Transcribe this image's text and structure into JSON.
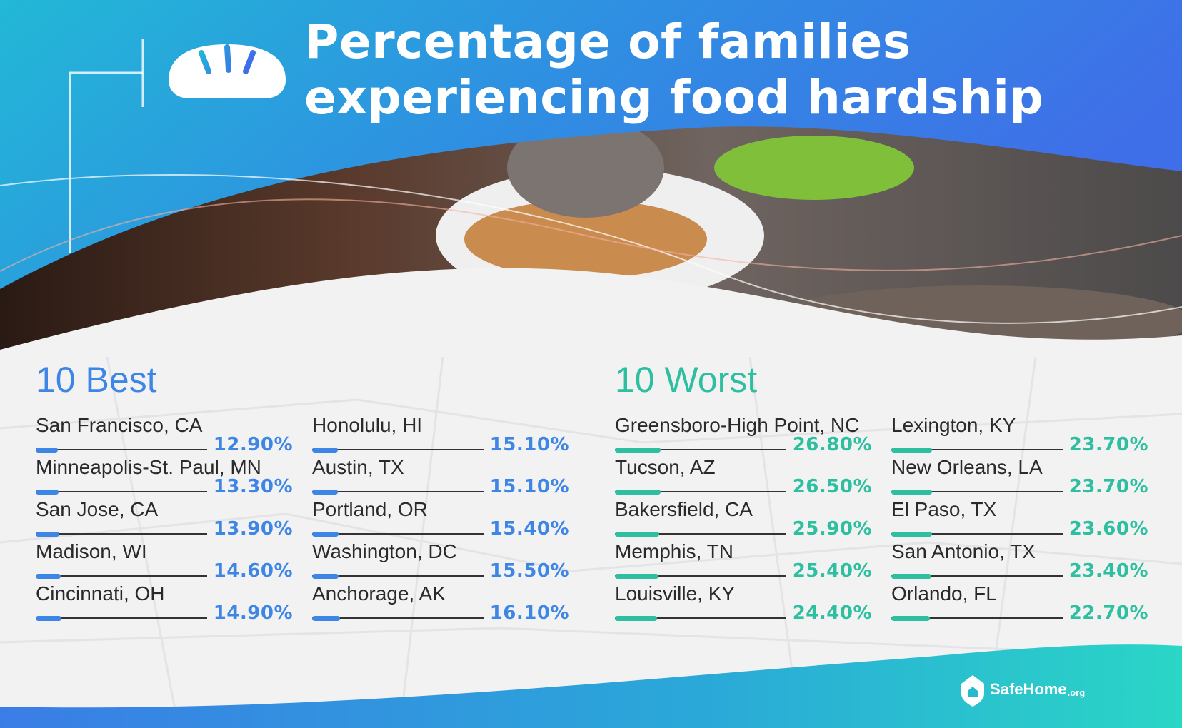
{
  "header": {
    "title_line1": "Percentage of families",
    "title_line2": "experiencing food hardship",
    "icon": "bread-icon"
  },
  "colors": {
    "best_accent": "#3e86e6",
    "worst_accent": "#2dbfa0",
    "header_blue": "#3a7de6",
    "footer_teal": "#2ad1c5"
  },
  "chart_data": [
    {
      "type": "bar",
      "title": "10 Best",
      "categories": [
        "San Francisco, CA",
        "Minneapolis-St. Paul, MN",
        "San Jose, CA",
        "Madison, WI",
        "Cincinnati, OH",
        "Honolulu, HI",
        "Austin, TX",
        "Portland, OR",
        "Washington, DC",
        "Anchorage, AK"
      ],
      "values": [
        12.9,
        13.3,
        13.9,
        14.6,
        14.9,
        15.1,
        15.1,
        15.4,
        15.5,
        16.1
      ],
      "labels": [
        "12.90%",
        "13.30%",
        "13.90%",
        "14.60%",
        "14.90%",
        "15.10%",
        "15.10%",
        "15.40%",
        "15.50%",
        "16.10%"
      ],
      "xlim": [
        0,
        100
      ]
    },
    {
      "type": "bar",
      "title": "10 Worst",
      "categories": [
        "Greensboro-High Point, NC",
        "Tucson, AZ",
        "Bakersfield, CA",
        "Memphis, TN",
        "Louisville, KY",
        "Lexington, KY",
        "New Orleans, LA",
        "El Paso, TX",
        "San Antonio, TX",
        "Orlando, FL"
      ],
      "values": [
        26.8,
        26.5,
        25.9,
        25.4,
        24.4,
        23.7,
        23.7,
        23.6,
        23.4,
        22.7
      ],
      "labels": [
        "26.80%",
        "26.50%",
        "25.90%",
        "25.40%",
        "24.40%",
        "23.70%",
        "23.70%",
        "23.60%",
        "23.40%",
        "22.70%"
      ],
      "xlim": [
        0,
        100
      ]
    }
  ],
  "footer": {
    "brand_name": "SafeHome",
    "brand_tld": ".org",
    "brand_icon": "house-shield-icon"
  }
}
